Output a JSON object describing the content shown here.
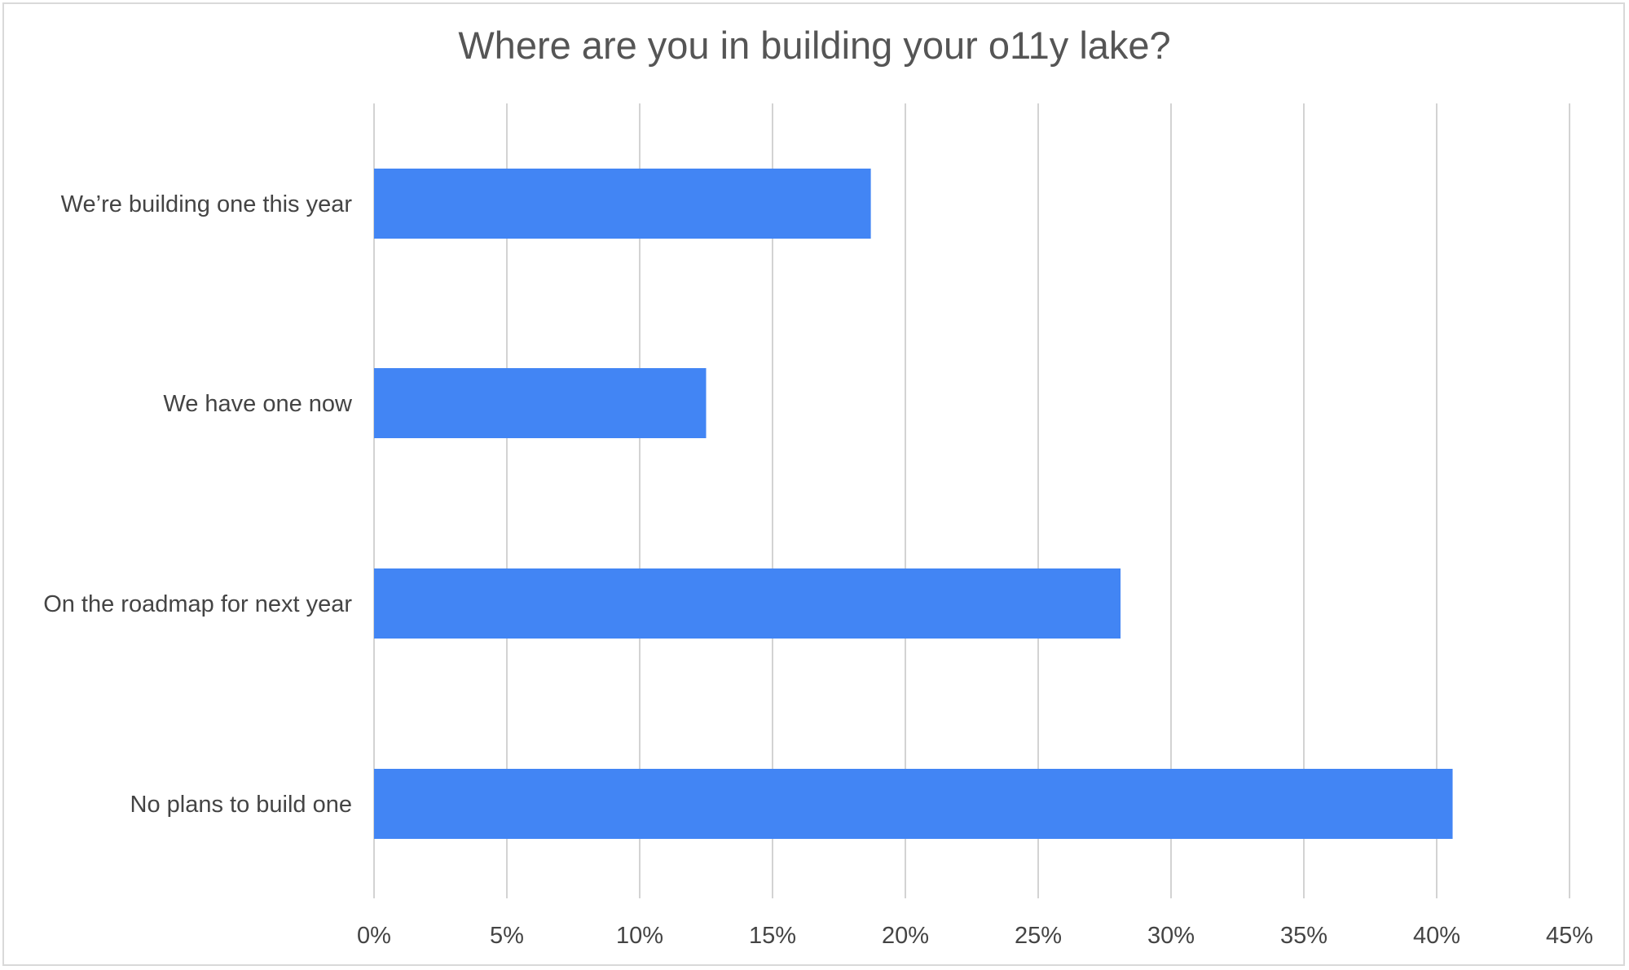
{
  "chart_data": {
    "type": "bar",
    "orientation": "horizontal",
    "title": "Where are you in building your o11y lake?",
    "categories": [
      "We’re building one this year",
      "We have one now",
      "On the roadmap for next year",
      "No plans to build one"
    ],
    "values": [
      18.7,
      12.5,
      28.1,
      40.6
    ],
    "xlim": [
      0,
      45
    ],
    "x_ticks": [
      "0%",
      "5%",
      "10%",
      "15%",
      "20%",
      "25%",
      "30%",
      "35%",
      "40%",
      "45%"
    ],
    "x_tick_values": [
      0,
      5,
      10,
      15,
      20,
      25,
      30,
      35,
      40,
      45
    ],
    "unit": "%",
    "grid": true,
    "legend": "none",
    "bar_color": "#4285f4",
    "gridline_color": "#d3d3d3",
    "text_color": "#444444"
  }
}
